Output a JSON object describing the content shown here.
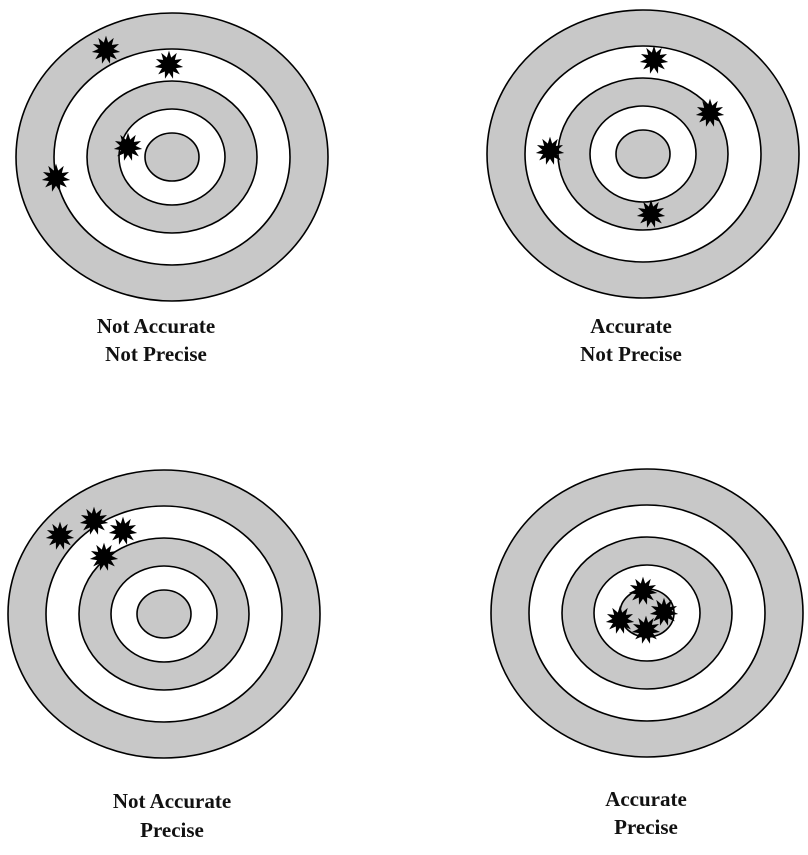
{
  "colors": {
    "ring_fill": "#c8c8c8",
    "gap_fill": "#ffffff",
    "outline": "#000000",
    "shot": "#000000"
  },
  "panels": [
    {
      "caption": {
        "line1": "Not Accurate",
        "line2": "Not Precise"
      },
      "shot_icon": "starburst-icon"
    },
    {
      "caption": {
        "line1": "Accurate",
        "line2": "Not Precise"
      },
      "shot_icon": "starburst-icon"
    },
    {
      "caption": {
        "line1": "Not Accurate",
        "line2": "Precise"
      },
      "shot_icon": "starburst-icon"
    },
    {
      "caption": {
        "line1": "Accurate",
        "line2": "Precise"
      },
      "shot_icon": "starburst-icon"
    }
  ]
}
